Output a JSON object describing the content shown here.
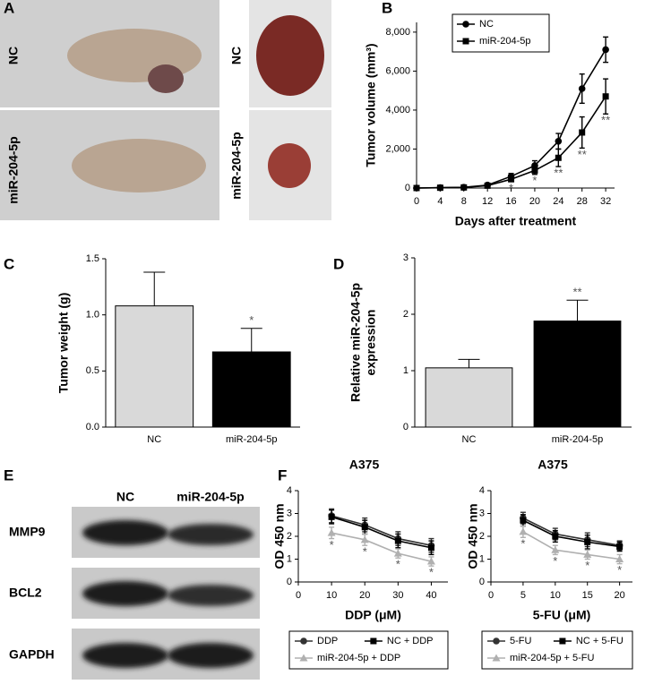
{
  "figure": {
    "panel_labels": [
      "A",
      "B",
      "C",
      "D",
      "E",
      "F"
    ],
    "photo_labels": [
      "NC",
      "miR-204-5p",
      "NC",
      "miR-204-5p"
    ],
    "blot": {
      "columns": [
        "NC",
        "miR-204-5p"
      ],
      "rows": [
        "MMP9",
        "BCL2",
        "GAPDH"
      ]
    }
  },
  "chart_data": [
    {
      "type": "line",
      "xlabel": "Days after treatment",
      "ylabel": "Tumor volume (mm³)",
      "x": [
        0,
        4,
        8,
        12,
        16,
        20,
        24,
        28,
        32
      ],
      "series": [
        {
          "name": "NC",
          "color": "#000000",
          "marker": "circle",
          "values": [
            0,
            20,
            40,
            150,
            600,
            1150,
            2400,
            5100,
            7100
          ],
          "errors": [
            0,
            0,
            0,
            50,
            150,
            250,
            400,
            750,
            650
          ]
        },
        {
          "name": "miR-204-5p",
          "color": "#000000",
          "marker": "square",
          "values": [
            0,
            15,
            30,
            120,
            450,
            900,
            1550,
            2850,
            4700
          ],
          "errors": [
            0,
            0,
            0,
            40,
            120,
            200,
            450,
            800,
            900
          ]
        }
      ],
      "annotations": [
        null,
        null,
        null,
        null,
        "*",
        "*",
        "**",
        "**",
        "**"
      ],
      "xlim": [
        0,
        33.5
      ],
      "xticks": [
        0,
        4,
        8,
        12,
        16,
        20,
        24,
        28,
        32
      ],
      "ylim": [
        0,
        8500
      ],
      "yticks": [
        0,
        {
          "value": 2000,
          "label": "2,000"
        },
        {
          "value": 4000,
          "label": "4,000"
        },
        {
          "value": 6000,
          "label": "6,000"
        },
        {
          "value": 8000,
          "label": "8,000"
        }
      ],
      "legend": "upper left"
    },
    {
      "type": "bar",
      "ylabel": "Tumor weight (g)",
      "categories": [
        "NC",
        "miR-204-5p"
      ],
      "values": [
        1.08,
        0.67
      ],
      "errors": [
        0.3,
        0.21
      ],
      "colors": [
        "#d9d9d9",
        "#000000"
      ],
      "annotations": [
        null,
        "*"
      ],
      "ylim": [
        0,
        1.5
      ],
      "yticks": [
        {
          "value": 0,
          "label": "0.0"
        },
        {
          "value": 0.5,
          "label": "0.5"
        },
        {
          "value": 1,
          "label": "1.0"
        },
        {
          "value": 1.5,
          "label": "1.5"
        }
      ]
    },
    {
      "type": "bar",
      "ylabel": [
        "Relative miR-204-5p",
        "expression"
      ],
      "categories": [
        "NC",
        "miR-204-5p"
      ],
      "values": [
        1.05,
        1.88
      ],
      "errors": [
        0.15,
        0.37
      ],
      "colors": [
        "#d9d9d9",
        "#000000"
      ],
      "annotations": [
        null,
        "**"
      ],
      "ylim": [
        0,
        3
      ],
      "yticks": [
        0,
        1,
        2,
        3
      ]
    },
    {
      "type": "line",
      "title": "A375",
      "xlabel": "DDP (μM)",
      "ylabel": "OD 450 nm",
      "x": [
        10,
        20,
        30,
        40
      ],
      "series": [
        {
          "name": "DDP",
          "color": "#333333",
          "marker": "circle",
          "values": [
            2.9,
            2.5,
            1.9,
            1.6
          ],
          "errors": [
            0.3,
            0.3,
            0.3,
            0.3
          ]
        },
        {
          "name": "NC + DDP",
          "color": "#000000",
          "marker": "square",
          "values": [
            2.85,
            2.4,
            1.8,
            1.5
          ],
          "errors": [
            0.3,
            0.3,
            0.3,
            0.3
          ]
        },
        {
          "name": "miR-204-5p + DDP",
          "color": "#b0b0b0",
          "marker": "triangle",
          "values": [
            2.15,
            1.85,
            1.25,
            0.9
          ],
          "errors": [
            0.25,
            0.25,
            0.2,
            0.2
          ]
        }
      ],
      "annotations": [
        "*",
        "*",
        "*",
        "*"
      ],
      "xlim": [
        0,
        45
      ],
      "xticks": [
        0,
        10,
        20,
        30,
        40
      ],
      "ylim": [
        0,
        4
      ],
      "yticks": [
        0,
        1,
        2,
        3,
        4
      ],
      "legend": "below"
    },
    {
      "type": "line",
      "title": "A375",
      "xlabel": "5-FU (μM)",
      "ylabel": "OD 450 nm",
      "x": [
        5,
        10,
        15,
        20
      ],
      "series": [
        {
          "name": "5-FU",
          "color": "#333333",
          "marker": "circle",
          "values": [
            2.8,
            2.1,
            1.85,
            1.6
          ],
          "errors": [
            0.25,
            0.25,
            0.3,
            0.2
          ]
        },
        {
          "name": "NC + 5-FU",
          "color": "#000000",
          "marker": "square",
          "values": [
            2.7,
            2.0,
            1.75,
            1.55
          ],
          "errors": [
            0.25,
            0.25,
            0.3,
            0.2
          ]
        },
        {
          "name": "miR-204-5p + 5-FU",
          "color": "#b0b0b0",
          "marker": "triangle",
          "values": [
            2.2,
            1.4,
            1.2,
            1.0
          ],
          "errors": [
            0.25,
            0.2,
            0.2,
            0.2
          ]
        }
      ],
      "annotations": [
        "*",
        "*",
        "*",
        "*"
      ],
      "xlim": [
        0,
        22
      ],
      "xticks": [
        0,
        5,
        10,
        15,
        20
      ],
      "ylim": [
        0,
        4
      ],
      "yticks": [
        0,
        1,
        2,
        3,
        4
      ],
      "legend": "below"
    }
  ]
}
